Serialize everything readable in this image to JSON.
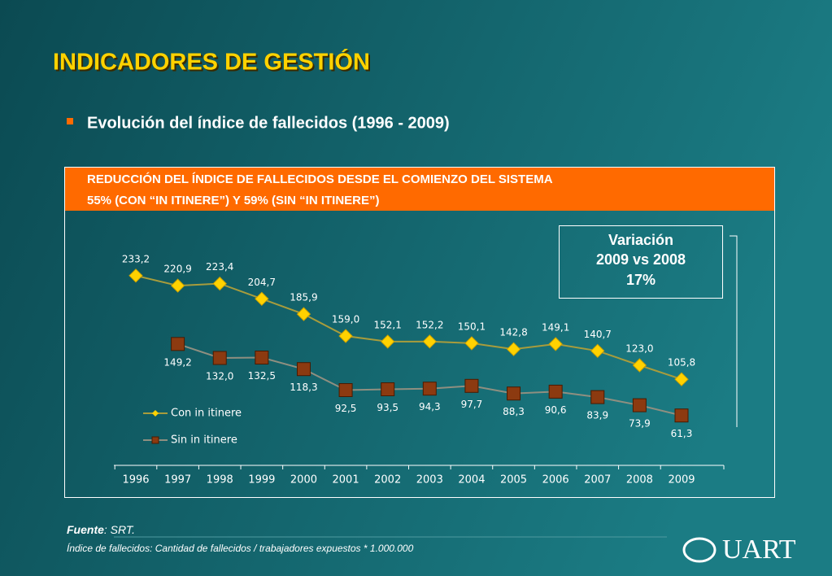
{
  "header": {
    "title": "INDICADORES DE GESTIÓN",
    "bullet": "Evolución del índice de fallecidos (1996 - 2009)"
  },
  "banner": [
    "REDUCCIÓN DEL ÍNDICE DE FALLECIDOS DESDE EL COMIENZO DEL SISTEMA",
    "55% (CON “IN ITINERE”) Y 59% (SIN “IN ITINERE”)"
  ],
  "box": [
    "Variación",
    "2009 vs 2008",
    "17%"
  ],
  "chart_data": {
    "type": "line",
    "categories": [
      "1996",
      "1997",
      "1998",
      "1999",
      "2000",
      "2001",
      "2002",
      "2003",
      "2004",
      "2005",
      "2006",
      "2007",
      "2008",
      "2009"
    ],
    "ylim": [
      0,
      300
    ],
    "series": [
      {
        "name": "Con in itinere",
        "color": "#ffd200",
        "line_color": "#a89c3c",
        "marker": "diamond",
        "values": [
          233.2,
          220.9,
          223.4,
          204.7,
          185.9,
          159.0,
          152.1,
          152.2,
          150.1,
          142.8,
          149.1,
          140.7,
          123.0,
          105.8
        ],
        "value_labels": [
          "233,2",
          "220,9",
          "223,4",
          "204,7",
          "185,9",
          "159,0",
          "152,1",
          "152,2",
          "150,1",
          "142,8",
          "149,1",
          "140,7",
          "123,0",
          "105,8"
        ]
      },
      {
        "name": "Sin in itinere",
        "color": "#8c3a10",
        "line_color": "#8f8f80",
        "marker": "square",
        "values": [
          null,
          149.2,
          132.0,
          132.5,
          118.3,
          92.5,
          93.5,
          94.3,
          97.7,
          88.3,
          90.6,
          83.9,
          73.9,
          61.3
        ],
        "value_labels": [
          null,
          "149,2",
          "132,0",
          "132,5",
          "118,3",
          "92,5",
          "93,5",
          "94,3",
          "97,7",
          "88,3",
          "90,6",
          "83,9",
          "73,9",
          "61,3"
        ]
      }
    ]
  },
  "source": {
    "label": "Fuente",
    "text": ": SRT."
  },
  "note": "Índice de fallecidos: Cantidad de fallecidos / trabajadores expuestos * 1.000.000",
  "logo": "UART"
}
